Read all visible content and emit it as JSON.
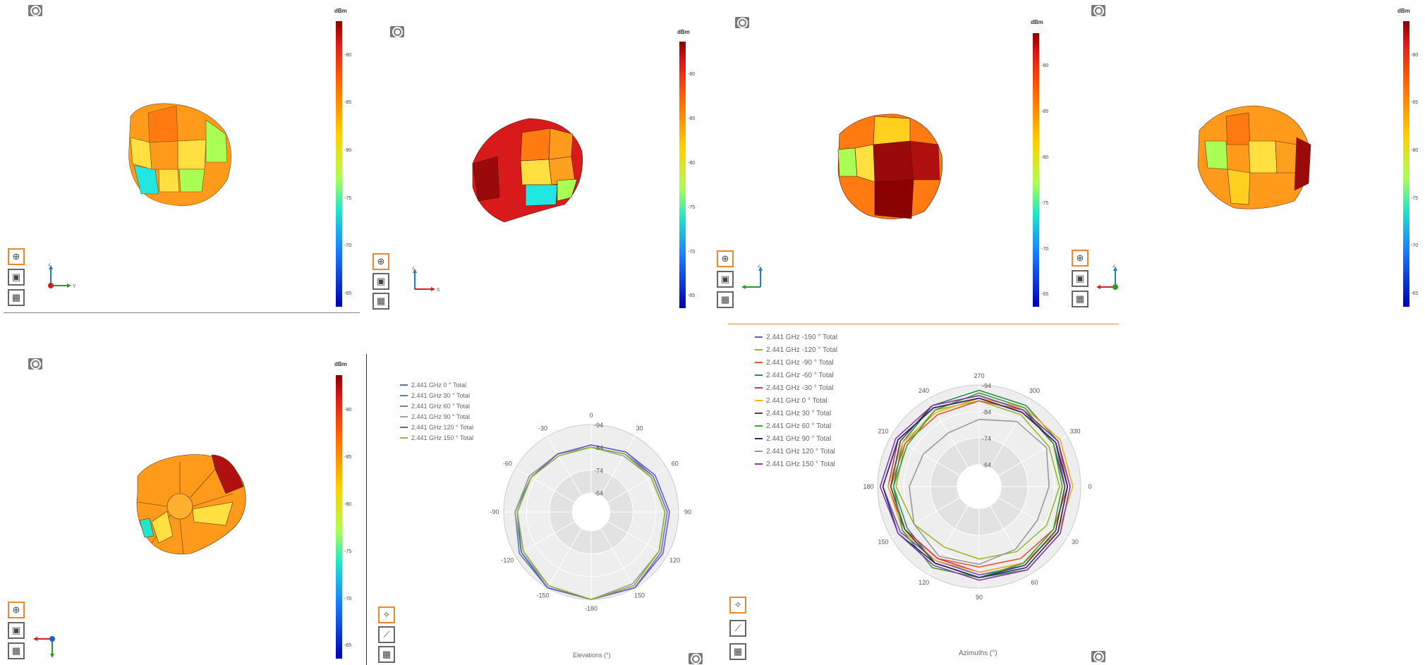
{
  "colorbar": {
    "title": "dBm",
    "panels": [
      {
        "ticks": [
          "-80",
          "-85",
          "-90",
          "-75",
          "-70",
          "-65"
        ]
      },
      {
        "ticks": [
          "-80",
          "-85",
          "-80",
          "-75",
          "-70",
          "-65"
        ]
      },
      {
        "ticks": [
          "-80",
          "-85",
          "-80",
          "-75",
          "-70",
          "-65"
        ]
      },
      {
        "ticks": [
          "-80",
          "-85",
          "-80",
          "-75",
          "-70",
          "-65"
        ]
      },
      {
        "ticks": [
          "-90",
          "-85",
          "-80",
          "-75",
          "-70",
          "-65"
        ]
      }
    ]
  },
  "axes_triad": [
    {
      "up": "Z",
      "right": "Y",
      "left": ""
    },
    {
      "up": "Z",
      "right": "X",
      "left": ""
    },
    {
      "up": "Z",
      "right": "",
      "left": "Y"
    },
    {
      "up": "Z",
      "right": "",
      "left": "X"
    },
    {
      "up": "",
      "right": "",
      "left": "X"
    }
  ],
  "colors": {
    "accent": "#e8892e",
    "gear": "#7a7a7a"
  },
  "chart_data": [
    {
      "type": "polar-line",
      "xlabel": "Elevations (°)",
      "angle_labels": [
        "0",
        "30",
        "60",
        "90",
        "120",
        "150",
        "-180",
        "-150",
        "-120",
        "-90",
        "-60",
        "-30"
      ],
      "radial_labels": [
        "-94",
        "-84",
        "-74",
        "-64"
      ],
      "series": [
        {
          "name": "2.441 GHz 0 ° Total",
          "color": "#5a6fb0",
          "values": [
            -84,
            -85,
            -87,
            -89,
            -91,
            -94,
            -94,
            -94,
            -91,
            -89,
            -87,
            -85
          ]
        },
        {
          "name": "2.441 GHz 30 ° Total",
          "color": "#4a8aa0",
          "values": [
            -84,
            -85,
            -86,
            -88,
            -90,
            -93,
            -94,
            -94,
            -92,
            -89,
            -86,
            -85
          ]
        },
        {
          "name": "2.441 GHz 60 ° Total",
          "color": "#7a7ac0",
          "values": [
            -85,
            -86,
            -87,
            -89,
            -91,
            -94,
            -94,
            -93,
            -90,
            -88,
            -86,
            -85
          ]
        },
        {
          "name": "2.441 GHz 90 ° Total",
          "color": "#a0a0a0",
          "values": [
            -84,
            -84,
            -86,
            -88,
            -90,
            -92,
            -94,
            -93,
            -91,
            -89,
            -87,
            -85
          ]
        },
        {
          "name": "2.441 GHz 120 ° Total",
          "color": "#6a5acd",
          "values": [
            -85,
            -86,
            -88,
            -90,
            -92,
            -94,
            -94,
            -94,
            -91,
            -88,
            -86,
            -85
          ]
        },
        {
          "name": "2.441 GHz 150 ° Total",
          "color": "#8db82a",
          "values": [
            -84,
            -85,
            -86,
            -88,
            -90,
            -93,
            -94,
            -93,
            -90,
            -88,
            -86,
            -84
          ]
        }
      ]
    },
    {
      "type": "polar-line",
      "xlabel": "Azimuths (°)",
      "angle_labels": [
        "0",
        "30",
        "60",
        "90",
        "120",
        "150",
        "180",
        "210",
        "240",
        "270",
        "300",
        "330"
      ],
      "radial_labels": [
        "-94",
        "-84",
        "-74",
        "-64"
      ],
      "series": [
        {
          "name": "2.441 GHz -150 ° Total",
          "color": "#6a4fc0",
          "values": [
            -88,
            -89,
            -90,
            -89,
            -88,
            -90,
            -92,
            -91,
            -90,
            -89,
            -88,
            -89
          ]
        },
        {
          "name": "2.441 GHz -120 ° Total",
          "color": "#9ab82a",
          "values": [
            -86,
            -85,
            -84,
            -83,
            -82,
            -84,
            -87,
            -88,
            -89,
            -88,
            -87,
            -86
          ]
        },
        {
          "name": "2.441 GHz -90 ° Total",
          "color": "#e4572e",
          "values": [
            -89,
            -88,
            -87,
            -86,
            -87,
            -88,
            -89,
            -88,
            -87,
            -88,
            -89,
            -90
          ]
        },
        {
          "name": "2.441 GHz -60 ° Total",
          "color": "#2e8b57",
          "values": [
            -90,
            -91,
            -92,
            -90,
            -89,
            -87,
            -88,
            -89,
            -91,
            -92,
            -91,
            -90
          ]
        },
        {
          "name": "2.441 GHz -30 ° Total",
          "color": "#d0306a",
          "values": [
            -89,
            -90,
            -89,
            -88,
            -87,
            -88,
            -90,
            -91,
            -90,
            -89,
            -88,
            -89
          ]
        },
        {
          "name": "2.441 GHz 0 ° Total",
          "color": "#f0b020",
          "values": [
            -91,
            -90,
            -89,
            -88,
            -88,
            -89,
            -90,
            -89,
            -88,
            -89,
            -90,
            -91
          ]
        },
        {
          "name": "2.441 GHz 30 ° Total",
          "color": "#444444",
          "values": [
            -88,
            -89,
            -90,
            -90,
            -89,
            -88,
            -89,
            -90,
            -91,
            -90,
            -89,
            -88
          ]
        },
        {
          "name": "2.441 GHz 60 ° Total",
          "color": "#3aa02e",
          "values": [
            -87,
            -88,
            -89,
            -90,
            -91,
            -89,
            -88,
            -87,
            -89,
            -91,
            -90,
            -88
          ]
        },
        {
          "name": "2.441 GHz 90 ° Total",
          "color": "#2a2a60",
          "values": [
            -89,
            -90,
            -91,
            -90,
            -89,
            -91,
            -92,
            -91,
            -90,
            -89,
            -88,
            -89
          ]
        },
        {
          "name": "2.441 GHz 120 ° Total",
          "color": "#999999",
          "values": [
            -82,
            -81,
            -83,
            -85,
            -86,
            -84,
            -82,
            -80,
            -79,
            -81,
            -84,
            -85
          ]
        },
        {
          "name": "2.441 GHz 150 ° Total",
          "color": "#8a3ab0",
          "values": [
            -90,
            -91,
            -92,
            -91,
            -90,
            -91,
            -93,
            -92,
            -91,
            -90,
            -89,
            -90
          ]
        }
      ]
    }
  ]
}
